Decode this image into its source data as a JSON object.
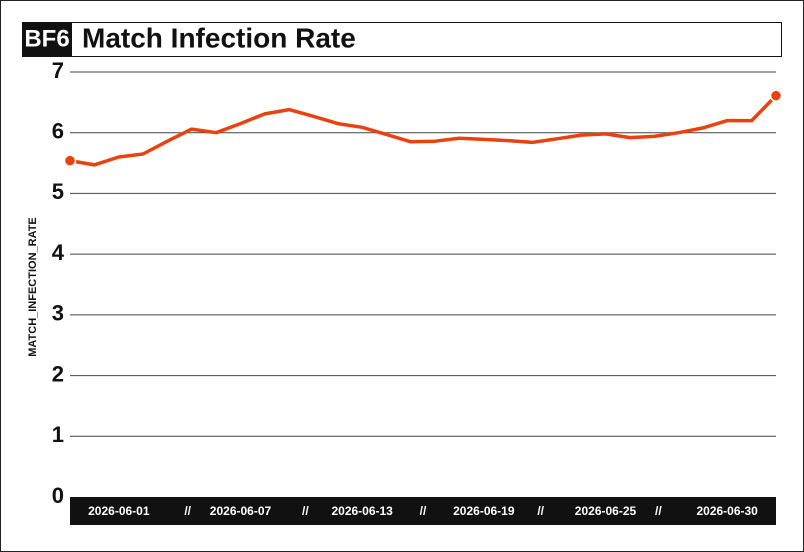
{
  "chart_data": {
    "type": "line",
    "badge": "BF6",
    "title": "Match Infection Rate",
    "y_label": "MATCH_INFECTION_RATE",
    "x": [
      "2026-06-01",
      "2026-06-02",
      "2026-06-03",
      "2026-06-04",
      "2026-06-05",
      "2026-06-06",
      "2026-06-07",
      "2026-06-08",
      "2026-06-09",
      "2026-06-10",
      "2026-06-11",
      "2026-06-12",
      "2026-06-13",
      "2026-06-14",
      "2026-06-15",
      "2026-06-16",
      "2026-06-17",
      "2026-06-18",
      "2026-06-19",
      "2026-06-20",
      "2026-06-21",
      "2026-06-22",
      "2026-06-23",
      "2026-06-24",
      "2026-06-25",
      "2026-06-26",
      "2026-06-27",
      "2026-06-28",
      "2026-06-29",
      "2026-06-30"
    ],
    "series": [
      {
        "name": "MATCH_INFECTION_RATE",
        "color": "#e8420f",
        "values": [
          5.54,
          5.47,
          5.6,
          5.65,
          5.86,
          6.06,
          6.0,
          6.15,
          6.31,
          6.38,
          6.27,
          6.15,
          6.09,
          5.97,
          5.85,
          5.86,
          5.91,
          5.89,
          5.87,
          5.84,
          5.9,
          5.96,
          5.98,
          5.92,
          5.94,
          6.0,
          6.08,
          6.2,
          6.2,
          6.61
        ]
      }
    ],
    "xticks": [
      "2026-06-01",
      "2026-06-07",
      "2026-06-13",
      "2026-06-19",
      "2026-06-25",
      "2026-06-30"
    ],
    "xtick_separator": "//",
    "ylim": [
      0,
      7
    ],
    "yticks": [
      0,
      1,
      2,
      3,
      4,
      5,
      6,
      7
    ],
    "grid": true
  }
}
